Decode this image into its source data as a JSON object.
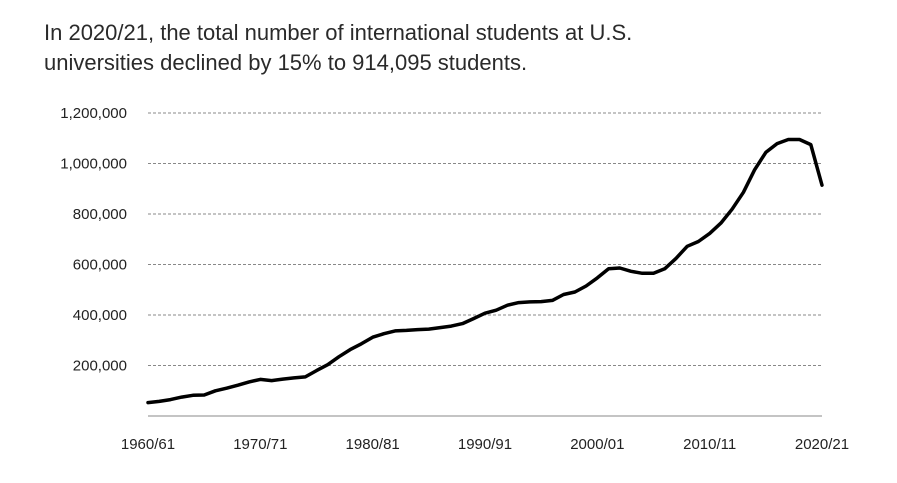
{
  "chart_data": {
    "type": "line",
    "title_lines": [
      "In 2020/21, the total number of international students at U.S.",
      "universities declined by 15% to 914,095 students."
    ],
    "xlabel": "",
    "ylabel": "",
    "ylim": [
      0,
      1200000
    ],
    "grid": true,
    "legend": "none",
    "x_tick_labels": [
      "1960/61",
      "1970/71",
      "1980/81",
      "1990/91",
      "2000/01",
      "2010/11",
      "2020/21"
    ],
    "y_tick_values": [
      200000,
      400000,
      600000,
      800000,
      1000000,
      1200000
    ],
    "y_tick_labels": [
      "200,000",
      "400,000",
      "600,000",
      "800,000",
      "1,000,000",
      "1,200,000"
    ],
    "line_color": "#000000",
    "grid_color": "#888888",
    "series": [
      {
        "x": [
          "1960/61",
          "1961/62",
          "1962/63",
          "1963/64",
          "1964/65",
          "1965/66",
          "1966/67",
          "1967/68",
          "1968/69",
          "1969/70",
          "1970/71",
          "1971/72",
          "1972/73",
          "1973/74",
          "1974/75",
          "1975/76",
          "1976/77",
          "1977/78",
          "1978/79",
          "1979/80",
          "1980/81",
          "1981/82",
          "1982/83",
          "1983/84",
          "1984/85",
          "1985/86",
          "1986/87",
          "1987/88",
          "1988/89",
          "1989/90",
          "1990/91",
          "1991/92",
          "1992/93",
          "1993/94",
          "1994/95",
          "1995/96",
          "1996/97",
          "1997/98",
          "1998/99",
          "1999/00",
          "2000/01",
          "2001/02",
          "2002/03",
          "2003/04",
          "2004/05",
          "2005/06",
          "2006/07",
          "2007/08",
          "2008/09",
          "2009/10",
          "2010/11",
          "2011/12",
          "2012/13",
          "2013/14",
          "2014/15",
          "2015/16",
          "2016/17",
          "2017/18",
          "2018/19",
          "2019/20",
          "2020/21"
        ],
        "values": [
          53000,
          58000,
          65000,
          75000,
          82000,
          83000,
          100000,
          110000,
          122000,
          135000,
          145000,
          140000,
          146000,
          151000,
          155000,
          180000,
          203000,
          235000,
          263000,
          286000,
          312000,
          326000,
          337000,
          339000,
          342000,
          344000,
          350000,
          356000,
          366000,
          386000,
          407000,
          419000,
          439000,
          449000,
          452000,
          453000,
          458000,
          481000,
          491000,
          515000,
          547000,
          583000,
          586000,
          573000,
          565000,
          565000,
          583000,
          624000,
          672000,
          691000,
          723000,
          764000,
          819000,
          886000,
          975000,
          1044000,
          1079000,
          1095000,
          1095000,
          1075000,
          914000
        ]
      }
    ]
  }
}
